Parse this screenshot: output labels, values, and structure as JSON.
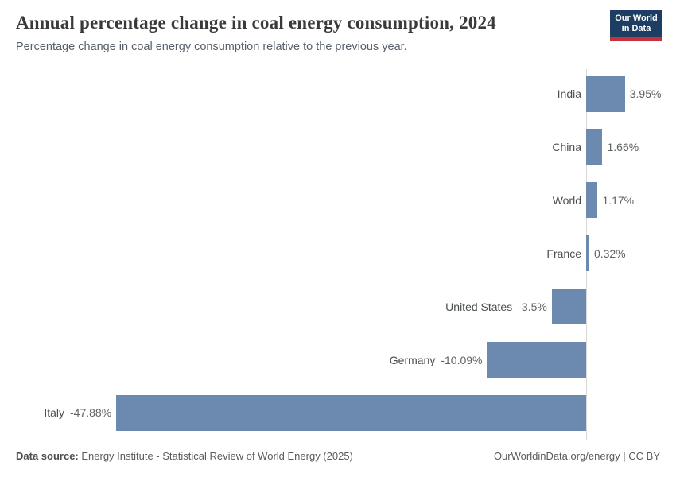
{
  "header": {
    "title": "Annual percentage change in coal energy consumption, 2024",
    "subtitle": "Percentage change in coal energy consumption relative to the previous year.",
    "logo": {
      "line1": "Our World",
      "line2": "in Data"
    }
  },
  "chart_data": {
    "type": "bar",
    "orientation": "horizontal",
    "title": "Annual percentage change in coal energy consumption, 2024",
    "unit": "%",
    "categories": [
      "India",
      "China",
      "World",
      "France",
      "United States",
      "Germany",
      "Italy"
    ],
    "values": [
      3.95,
      1.66,
      1.17,
      0.32,
      -3.5,
      -10.09,
      -47.88
    ],
    "value_labels": [
      "3.95%",
      "1.66%",
      "1.17%",
      "0.32%",
      "-3.5%",
      "-10.09%",
      "-47.88%"
    ],
    "xlim": [
      -47.88,
      3.95
    ],
    "grid": false,
    "zero_line": true,
    "legend": "none",
    "bar_color": "#6c8ab0"
  },
  "footer": {
    "source_label": "Data source:",
    "source_text": " Energy Institute - Statistical Review of World Energy (2025)",
    "credit": "OurWorldinData.org/energy | CC BY"
  },
  "colors": {
    "bar": "#6c8ab0",
    "axis_line": "#d9d9d9",
    "logo_navy": "#1d3d63",
    "logo_red": "#c4333d",
    "title_text": "#3a3a3a",
    "label_text": "#4a4f52",
    "value_text": "#5d6266"
  }
}
